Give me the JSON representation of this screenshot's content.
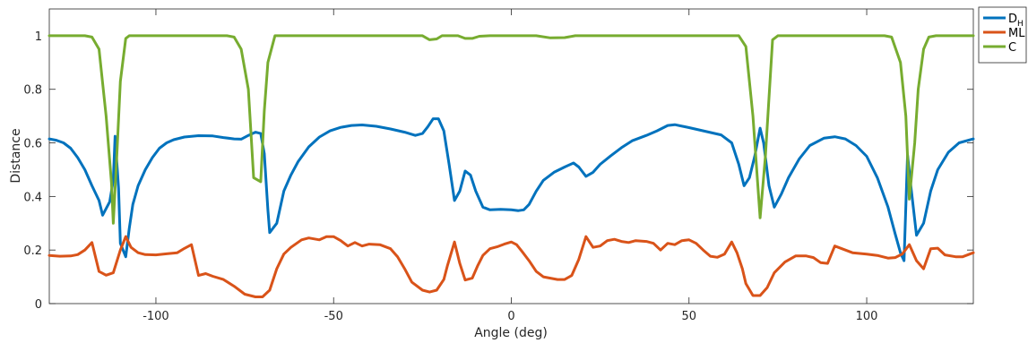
{
  "chart_data": {
    "type": "line",
    "xlabel": "Angle (deg)",
    "ylabel": "Distance",
    "xlim": [
      -130,
      130
    ],
    "ylim": [
      0,
      1.1
    ],
    "xticks": [
      -100,
      -50,
      0,
      50,
      100
    ],
    "yticks": [
      0,
      0.2,
      0.4,
      0.6,
      0.8,
      1
    ],
    "xtick_labels": [
      "-100",
      "-50",
      "0",
      "50",
      "100"
    ],
    "ytick_labels": [
      "0",
      "0.2",
      "0.4",
      "0.6",
      "0.8",
      "1"
    ],
    "grid": false,
    "legend_position": "outside-top-right",
    "series": [
      {
        "name": "D",
        "name_sub": "H",
        "color": "#0072BD",
        "points": [
          [
            -130,
            0.615
          ],
          [
            -128,
            0.61
          ],
          [
            -126,
            0.6
          ],
          [
            -124,
            0.58
          ],
          [
            -122,
            0.545
          ],
          [
            -120,
            0.5
          ],
          [
            -118,
            0.44
          ],
          [
            -116,
            0.385
          ],
          [
            -115,
            0.33
          ],
          [
            -113,
            0.38
          ],
          [
            -112,
            0.46
          ],
          [
            -111.5,
            0.625
          ],
          [
            -110.5,
            0.43
          ],
          [
            -110,
            0.225
          ],
          [
            -108.5,
            0.175
          ],
          [
            -107.5,
            0.28
          ],
          [
            -106.5,
            0.37
          ],
          [
            -105,
            0.44
          ],
          [
            -103,
            0.5
          ],
          [
            -101,
            0.545
          ],
          [
            -99,
            0.58
          ],
          [
            -97,
            0.6
          ],
          [
            -95,
            0.612
          ],
          [
            -92,
            0.622
          ],
          [
            -88,
            0.627
          ],
          [
            -84,
            0.626
          ],
          [
            -81,
            0.62
          ],
          [
            -78,
            0.615
          ],
          [
            -76,
            0.614
          ],
          [
            -74,
            0.628
          ],
          [
            -72,
            0.64
          ],
          [
            -70.5,
            0.635
          ],
          [
            -69.5,
            0.56
          ],
          [
            -68.5,
            0.35
          ],
          [
            -68,
            0.265
          ],
          [
            -66,
            0.3
          ],
          [
            -64,
            0.42
          ],
          [
            -62,
            0.48
          ],
          [
            -60,
            0.53
          ],
          [
            -57,
            0.585
          ],
          [
            -54,
            0.622
          ],
          [
            -51,
            0.645
          ],
          [
            -48,
            0.658
          ],
          [
            -45,
            0.665
          ],
          [
            -42,
            0.667
          ],
          [
            -38,
            0.662
          ],
          [
            -34,
            0.652
          ],
          [
            -30,
            0.64
          ],
          [
            -27,
            0.628
          ],
          [
            -25,
            0.635
          ],
          [
            -23.5,
            0.66
          ],
          [
            -22,
            0.69
          ],
          [
            -20.5,
            0.69
          ],
          [
            -19,
            0.645
          ],
          [
            -17.5,
            0.52
          ],
          [
            -16,
            0.385
          ],
          [
            -14.5,
            0.42
          ],
          [
            -13,
            0.495
          ],
          [
            -11.5,
            0.48
          ],
          [
            -10,
            0.42
          ],
          [
            -8,
            0.36
          ],
          [
            -6,
            0.35
          ],
          [
            -3,
            0.352
          ],
          [
            0,
            0.35
          ],
          [
            2,
            0.347
          ],
          [
            3.5,
            0.35
          ],
          [
            5,
            0.37
          ],
          [
            7,
            0.42
          ],
          [
            9,
            0.46
          ],
          [
            12,
            0.49
          ],
          [
            15,
            0.51
          ],
          [
            17.5,
            0.525
          ],
          [
            19,
            0.51
          ],
          [
            21,
            0.475
          ],
          [
            23,
            0.49
          ],
          [
            25,
            0.52
          ],
          [
            28,
            0.552
          ],
          [
            31,
            0.582
          ],
          [
            34,
            0.608
          ],
          [
            38,
            0.628
          ],
          [
            41,
            0.645
          ],
          [
            44,
            0.665
          ],
          [
            46,
            0.668
          ],
          [
            50,
            0.657
          ],
          [
            55,
            0.642
          ],
          [
            59,
            0.63
          ],
          [
            62,
            0.6
          ],
          [
            64,
            0.52
          ],
          [
            65.5,
            0.44
          ],
          [
            67,
            0.47
          ],
          [
            68.5,
            0.55
          ],
          [
            70,
            0.655
          ],
          [
            71,
            0.6
          ],
          [
            72.5,
            0.44
          ],
          [
            74,
            0.36
          ],
          [
            76,
            0.41
          ],
          [
            78,
            0.47
          ],
          [
            81,
            0.54
          ],
          [
            84,
            0.59
          ],
          [
            88,
            0.618
          ],
          [
            91,
            0.623
          ],
          [
            94,
            0.615
          ],
          [
            97,
            0.59
          ],
          [
            100,
            0.55
          ],
          [
            103,
            0.47
          ],
          [
            106,
            0.36
          ],
          [
            108,
            0.26
          ],
          [
            109.5,
            0.19
          ],
          [
            110.5,
            0.16
          ],
          [
            111.5,
            0.555
          ],
          [
            112.5,
            0.43
          ],
          [
            114,
            0.255
          ],
          [
            116,
            0.3
          ],
          [
            118,
            0.42
          ],
          [
            120,
            0.5
          ],
          [
            123,
            0.565
          ],
          [
            126,
            0.6
          ],
          [
            130,
            0.615
          ]
        ]
      },
      {
        "name": "ML",
        "name_sub": "",
        "color": "#D95319",
        "points": [
          [
            -130,
            0.18
          ],
          [
            -127,
            0.177
          ],
          [
            -124,
            0.178
          ],
          [
            -122,
            0.183
          ],
          [
            -120,
            0.2
          ],
          [
            -118,
            0.228
          ],
          [
            -116,
            0.12
          ],
          [
            -114,
            0.106
          ],
          [
            -112,
            0.115
          ],
          [
            -110,
            0.2
          ],
          [
            -108.5,
            0.25
          ],
          [
            -107,
            0.21
          ],
          [
            -105,
            0.19
          ],
          [
            -103,
            0.183
          ],
          [
            -100,
            0.182
          ],
          [
            -97,
            0.186
          ],
          [
            -94,
            0.19
          ],
          [
            -92,
            0.206
          ],
          [
            -90,
            0.22
          ],
          [
            -88,
            0.105
          ],
          [
            -86,
            0.112
          ],
          [
            -84,
            0.102
          ],
          [
            -81,
            0.09
          ],
          [
            -78,
            0.065
          ],
          [
            -75,
            0.035
          ],
          [
            -72,
            0.025
          ],
          [
            -70,
            0.025
          ],
          [
            -68,
            0.05
          ],
          [
            -66,
            0.13
          ],
          [
            -64,
            0.185
          ],
          [
            -62,
            0.21
          ],
          [
            -59,
            0.238
          ],
          [
            -57,
            0.245
          ],
          [
            -54,
            0.238
          ],
          [
            -52,
            0.25
          ],
          [
            -50,
            0.25
          ],
          [
            -48,
            0.235
          ],
          [
            -46,
            0.215
          ],
          [
            -44,
            0.228
          ],
          [
            -42,
            0.215
          ],
          [
            -40,
            0.222
          ],
          [
            -37,
            0.22
          ],
          [
            -34,
            0.205
          ],
          [
            -32,
            0.175
          ],
          [
            -30,
            0.13
          ],
          [
            -28,
            0.08
          ],
          [
            -25,
            0.05
          ],
          [
            -23,
            0.043
          ],
          [
            -21,
            0.05
          ],
          [
            -19,
            0.09
          ],
          [
            -18,
            0.14
          ],
          [
            -16,
            0.23
          ],
          [
            -14.5,
            0.15
          ],
          [
            -13,
            0.088
          ],
          [
            -11,
            0.095
          ],
          [
            -9.5,
            0.14
          ],
          [
            -8,
            0.18
          ],
          [
            -6,
            0.205
          ],
          [
            -4,
            0.212
          ],
          [
            -2,
            0.222
          ],
          [
            0,
            0.23
          ],
          [
            1.5,
            0.22
          ],
          [
            3,
            0.195
          ],
          [
            5,
            0.16
          ],
          [
            7,
            0.12
          ],
          [
            9,
            0.1
          ],
          [
            11,
            0.095
          ],
          [
            13,
            0.09
          ],
          [
            15,
            0.09
          ],
          [
            17,
            0.105
          ],
          [
            19,
            0.165
          ],
          [
            21,
            0.25
          ],
          [
            23,
            0.21
          ],
          [
            25,
            0.215
          ],
          [
            27,
            0.235
          ],
          [
            29,
            0.24
          ],
          [
            31,
            0.232
          ],
          [
            33,
            0.228
          ],
          [
            35,
            0.235
          ],
          [
            38,
            0.232
          ],
          [
            40,
            0.225
          ],
          [
            42,
            0.2
          ],
          [
            44,
            0.225
          ],
          [
            46,
            0.22
          ],
          [
            48,
            0.235
          ],
          [
            50,
            0.238
          ],
          [
            52,
            0.225
          ],
          [
            54,
            0.2
          ],
          [
            56,
            0.177
          ],
          [
            58,
            0.173
          ],
          [
            60,
            0.185
          ],
          [
            62,
            0.23
          ],
          [
            63.5,
            0.19
          ],
          [
            65,
            0.13
          ],
          [
            66,
            0.075
          ],
          [
            68,
            0.03
          ],
          [
            70,
            0.03
          ],
          [
            72,
            0.06
          ],
          [
            74,
            0.115
          ],
          [
            77,
            0.155
          ],
          [
            80,
            0.178
          ],
          [
            83,
            0.178
          ],
          [
            85,
            0.172
          ],
          [
            87,
            0.153
          ],
          [
            89,
            0.15
          ],
          [
            91,
            0.215
          ],
          [
            93,
            0.205
          ],
          [
            96,
            0.19
          ],
          [
            100,
            0.185
          ],
          [
            103,
            0.18
          ],
          [
            106,
            0.17
          ],
          [
            108,
            0.172
          ],
          [
            110,
            0.185
          ],
          [
            112,
            0.22
          ],
          [
            114,
            0.16
          ],
          [
            116,
            0.13
          ],
          [
            118,
            0.205
          ],
          [
            120,
            0.207
          ],
          [
            122,
            0.182
          ],
          [
            125,
            0.175
          ],
          [
            127,
            0.175
          ],
          [
            130,
            0.19
          ]
        ]
      },
      {
        "name": "C",
        "name_sub": "",
        "color": "#77AC30",
        "points": [
          [
            -130,
            1
          ],
          [
            -120,
            1
          ],
          [
            -118,
            0.995
          ],
          [
            -116,
            0.95
          ],
          [
            -114,
            0.7
          ],
          [
            -112.5,
            0.45
          ],
          [
            -112,
            0.3
          ],
          [
            -111,
            0.55
          ],
          [
            -110,
            0.83
          ],
          [
            -108.5,
            0.99
          ],
          [
            -107.5,
            1
          ],
          [
            -80,
            1
          ],
          [
            -78,
            0.995
          ],
          [
            -76,
            0.95
          ],
          [
            -74,
            0.8
          ],
          [
            -72.5,
            0.47
          ],
          [
            -70.5,
            0.455
          ],
          [
            -69.5,
            0.72
          ],
          [
            -68.5,
            0.9
          ],
          [
            -66.5,
            1
          ],
          [
            -25,
            1
          ],
          [
            -23,
            0.985
          ],
          [
            -21,
            0.988
          ],
          [
            -19.5,
            1
          ],
          [
            -15,
            1
          ],
          [
            -13,
            0.99
          ],
          [
            -11,
            0.99
          ],
          [
            -9,
            0.998
          ],
          [
            -6,
            1
          ],
          [
            7,
            1
          ],
          [
            11,
            0.992
          ],
          [
            15,
            0.993
          ],
          [
            18,
            1
          ],
          [
            64,
            1
          ],
          [
            66,
            0.96
          ],
          [
            68,
            0.7
          ],
          [
            70,
            0.32
          ],
          [
            71.5,
            0.55
          ],
          [
            73.5,
            0.985
          ],
          [
            75,
            1
          ],
          [
            105,
            1
          ],
          [
            107,
            0.995
          ],
          [
            109.5,
            0.9
          ],
          [
            111,
            0.7
          ],
          [
            112,
            0.39
          ],
          [
            113.5,
            0.6
          ],
          [
            114.5,
            0.8
          ],
          [
            116,
            0.95
          ],
          [
            117.5,
            0.995
          ],
          [
            119.5,
            1
          ],
          [
            130,
            1
          ]
        ]
      }
    ]
  }
}
